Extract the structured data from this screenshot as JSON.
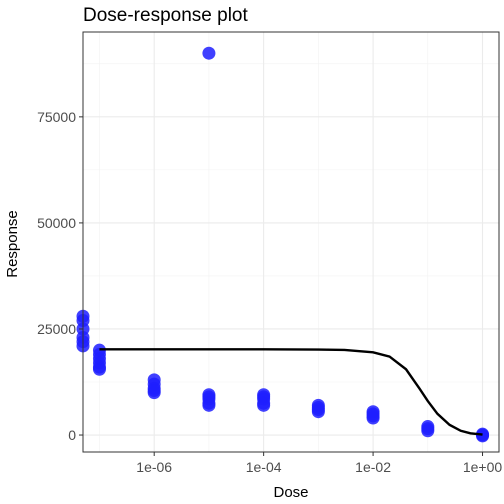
{
  "chart_data": {
    "type": "scatter",
    "title": "Dose-response plot",
    "xlabel": "Dose",
    "ylabel": "Response",
    "x_scale": "log10",
    "xlim": [
      5e-08,
      2
    ],
    "ylim": [
      -4000,
      95000
    ],
    "x_ticks": [
      {
        "value": 1e-06,
        "label": "1e-06"
      },
      {
        "value": 0.0001,
        "label": "1e-04"
      },
      {
        "value": 0.01,
        "label": "1e-02"
      },
      {
        "value": 1,
        "label": "1e+00"
      }
    ],
    "y_ticks": [
      {
        "value": 0,
        "label": "0"
      },
      {
        "value": 25000,
        "label": "25000"
      },
      {
        "value": 50000,
        "label": "50000"
      },
      {
        "value": 75000,
        "label": "75000"
      }
    ],
    "grid": true,
    "point_color": "#1f1fff",
    "curve_color": "#000000",
    "points": [
      {
        "x": 5e-08,
        "y": 28000
      },
      {
        "x": 5e-08,
        "y": 27000
      },
      {
        "x": 5e-08,
        "y": 25000
      },
      {
        "x": 5e-08,
        "y": 23000
      },
      {
        "x": 5e-08,
        "y": 22000
      },
      {
        "x": 5e-08,
        "y": 21000
      },
      {
        "x": 1e-07,
        "y": 20000
      },
      {
        "x": 1e-07,
        "y": 19000
      },
      {
        "x": 1e-07,
        "y": 18000
      },
      {
        "x": 1e-07,
        "y": 17000
      },
      {
        "x": 1e-07,
        "y": 16000
      },
      {
        "x": 1e-07,
        "y": 15500
      },
      {
        "x": 1e-06,
        "y": 13000
      },
      {
        "x": 1e-06,
        "y": 12000
      },
      {
        "x": 1e-06,
        "y": 11000
      },
      {
        "x": 1e-06,
        "y": 10500
      },
      {
        "x": 1e-06,
        "y": 10000
      },
      {
        "x": 1e-05,
        "y": 90000
      },
      {
        "x": 1e-05,
        "y": 9500
      },
      {
        "x": 1e-05,
        "y": 9000
      },
      {
        "x": 1e-05,
        "y": 8500
      },
      {
        "x": 1e-05,
        "y": 7500
      },
      {
        "x": 1e-05,
        "y": 7000
      },
      {
        "x": 0.0001,
        "y": 9500
      },
      {
        "x": 0.0001,
        "y": 9000
      },
      {
        "x": 0.0001,
        "y": 8500
      },
      {
        "x": 0.0001,
        "y": 7500
      },
      {
        "x": 0.0001,
        "y": 7000
      },
      {
        "x": 0.001,
        "y": 7000
      },
      {
        "x": 0.001,
        "y": 6500
      },
      {
        "x": 0.001,
        "y": 6000
      },
      {
        "x": 0.001,
        "y": 5500
      },
      {
        "x": 0.01,
        "y": 5500
      },
      {
        "x": 0.01,
        "y": 5000
      },
      {
        "x": 0.01,
        "y": 4500
      },
      {
        "x": 0.01,
        "y": 4000
      },
      {
        "x": 0.1,
        "y": 2000
      },
      {
        "x": 0.1,
        "y": 1500
      },
      {
        "x": 0.1,
        "y": 1000
      },
      {
        "x": 1,
        "y": 200
      },
      {
        "x": 1,
        "y": 0
      },
      {
        "x": 1,
        "y": -200
      }
    ],
    "fit_curve": [
      {
        "x": 1e-07,
        "y": 20200
      },
      {
        "x": 1e-06,
        "y": 20200
      },
      {
        "x": 1e-05,
        "y": 20200
      },
      {
        "x": 0.0001,
        "y": 20200
      },
      {
        "x": 0.001,
        "y": 20150
      },
      {
        "x": 0.003,
        "y": 20050
      },
      {
        "x": 0.01,
        "y": 19500
      },
      {
        "x": 0.02,
        "y": 18500
      },
      {
        "x": 0.04,
        "y": 15500
      },
      {
        "x": 0.07,
        "y": 11000
      },
      {
        "x": 0.1,
        "y": 8000
      },
      {
        "x": 0.15,
        "y": 5000
      },
      {
        "x": 0.25,
        "y": 2400
      },
      {
        "x": 0.4,
        "y": 1000
      },
      {
        "x": 0.6,
        "y": 400
      },
      {
        "x": 1,
        "y": 100
      }
    ]
  }
}
